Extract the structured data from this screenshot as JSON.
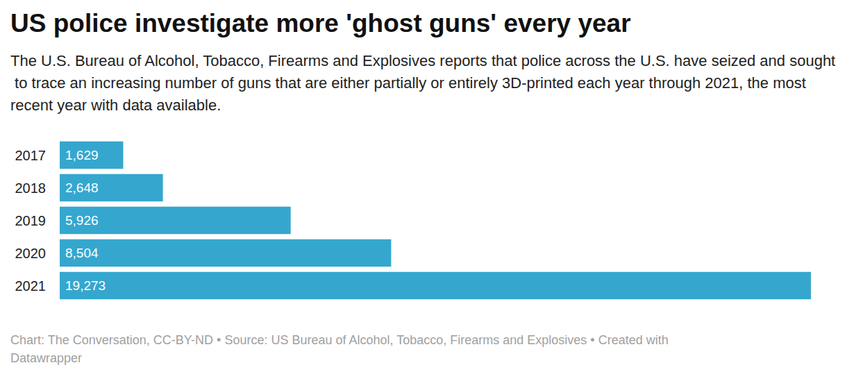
{
  "chart_data": {
    "type": "bar",
    "orientation": "horizontal",
    "title": "US police investigate more 'ghost guns' every year",
    "subtitle": "The U.S. Bureau of Alcohol, Tobacco, Firearms and Explosives reports that police across the U.S. have seized and sought to trace an increasing number of guns that are either partially or entirely 3D-printed each year through 2021, the most recent year with data available.",
    "source": "Chart: The Conversation, CC-BY-ND • Source: US Bureau of Alcohol, Tobacco, Firearms and Explosives • Created with Datawrapper",
    "categories": [
      "2017",
      "2018",
      "2019",
      "2020",
      "2021"
    ],
    "values": [
      1629,
      2648,
      5926,
      8504,
      19273
    ],
    "value_labels": [
      "1,629",
      "2,648",
      "5,926",
      "8,504",
      "19,273"
    ],
    "color": "#35a7cf",
    "xlim": [
      0,
      19273
    ],
    "data_labels": true,
    "tick_labels": "y",
    "grid": false
  }
}
